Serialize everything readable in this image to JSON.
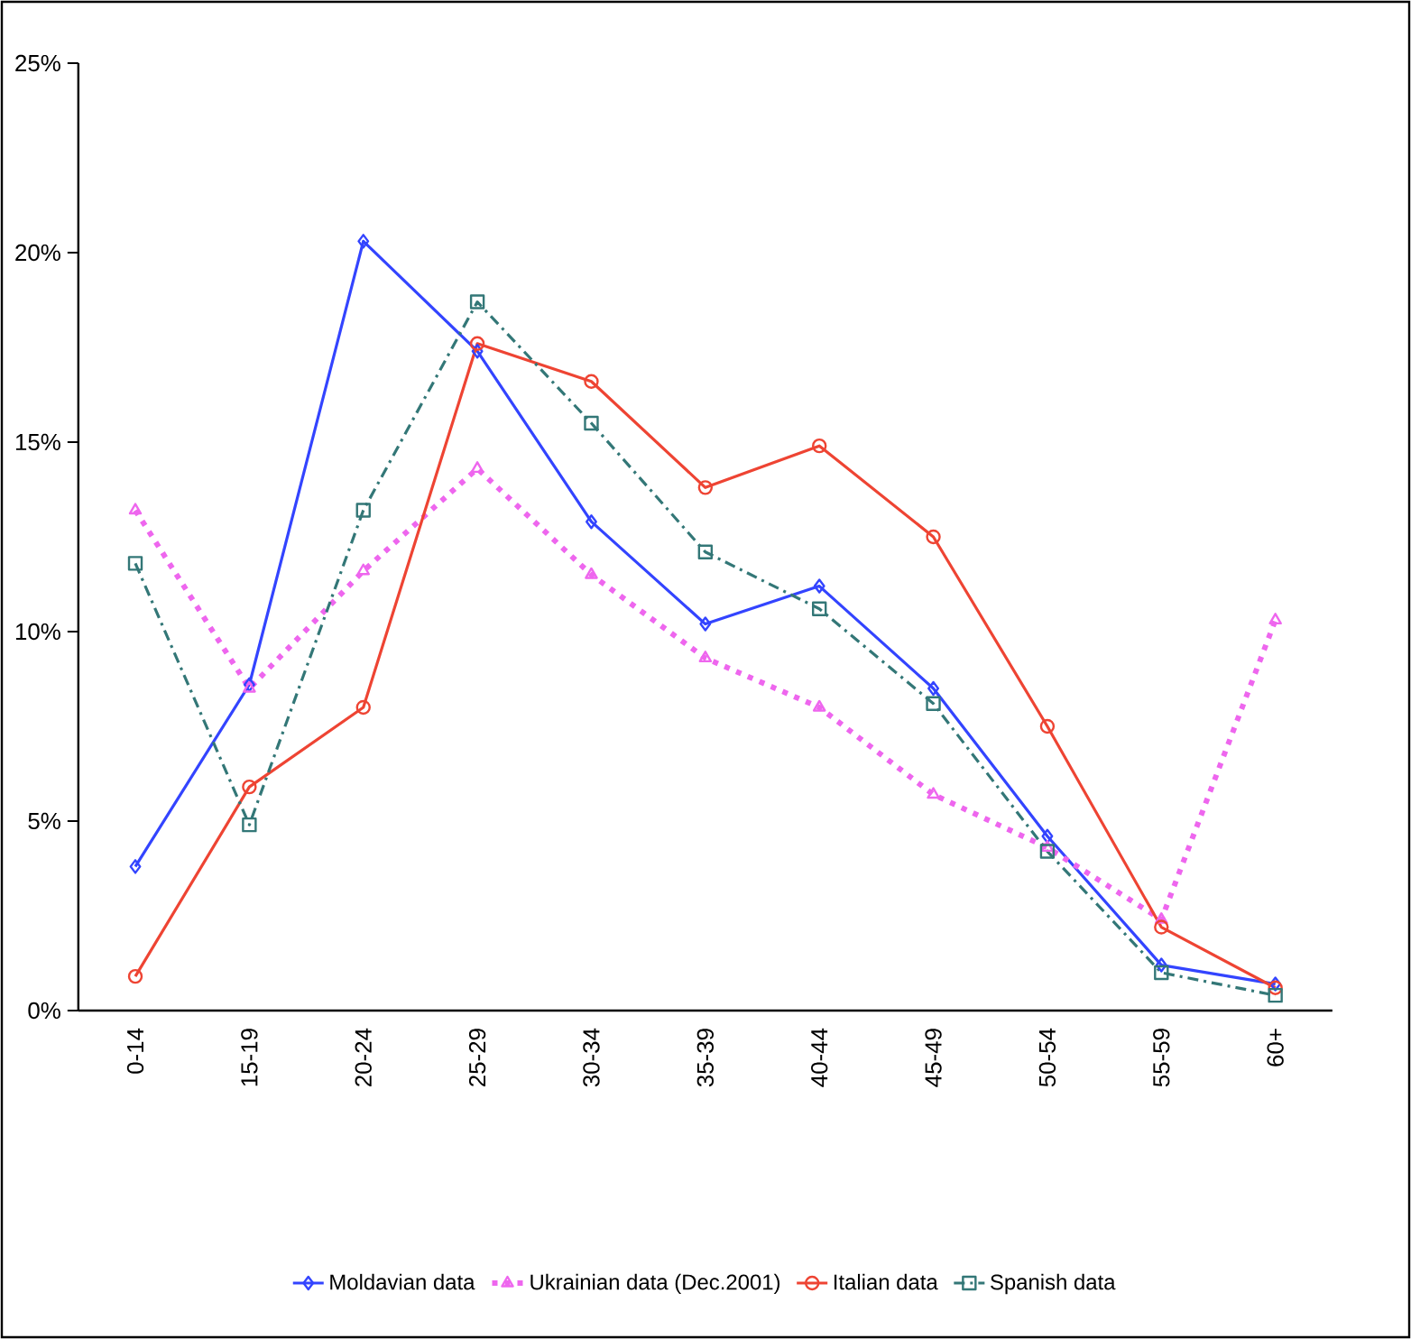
{
  "chart_data": {
    "type": "line",
    "categories": [
      "0-14",
      "15-19",
      "20-24",
      "25-29",
      "30-34",
      "35-39",
      "40-44",
      "45-49",
      "50-54",
      "55-59",
      "60+"
    ],
    "series": [
      {
        "name": "Moldavian data",
        "color": "#3344ff",
        "marker": "diamond",
        "line_style": "solid",
        "values": [
          3.8,
          8.6,
          20.3,
          17.4,
          12.9,
          10.2,
          11.2,
          8.5,
          4.6,
          1.2,
          0.7
        ]
      },
      {
        "name": "Ukrainian data (Dec.2001)",
        "color": "#ee66ee",
        "marker": "triangle",
        "line_style": "dotted",
        "values": [
          13.2,
          8.5,
          11.6,
          14.3,
          11.5,
          9.3,
          8.0,
          5.7,
          4.3,
          2.4,
          10.3
        ]
      },
      {
        "name": "Italian data",
        "color": "#ee4433",
        "marker": "circle",
        "line_style": "solid",
        "values": [
          0.9,
          5.9,
          8.0,
          17.6,
          16.6,
          13.8,
          14.9,
          12.5,
          7.5,
          2.2,
          0.6
        ]
      },
      {
        "name": "Spanish data",
        "color": "#337777",
        "marker": "square",
        "line_style": "dashdot",
        "values": [
          11.8,
          4.9,
          13.2,
          18.7,
          15.5,
          12.1,
          10.6,
          8.1,
          4.2,
          1.0,
          0.4
        ]
      }
    ],
    "ylim": [
      0,
      25
    ],
    "yticks": [
      {
        "value": 0,
        "label": "0%"
      },
      {
        "value": 5,
        "label": "5%"
      },
      {
        "value": 10,
        "label": "10%"
      },
      {
        "value": 15,
        "label": "15%"
      },
      {
        "value": 20,
        "label": "20%"
      },
      {
        "value": 25,
        "label": "25%"
      }
    ],
    "legend": "bottom",
    "grid": false
  }
}
